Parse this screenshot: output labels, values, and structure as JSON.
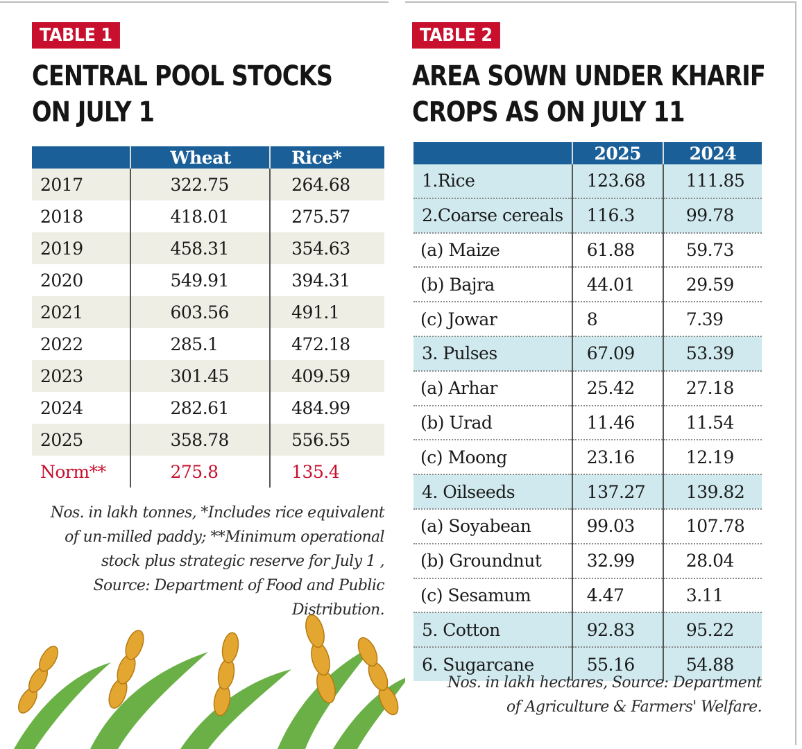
{
  "table1": {
    "tag": "TABLE 1",
    "title_line1": "CENTRAL POOL STOCKS",
    "title_line2": "ON JULY 1",
    "headers": [
      "",
      "Wheat",
      "Rice*"
    ],
    "rows": [
      [
        "2017",
        "322.75",
        "264.68"
      ],
      [
        "2018",
        "418.01",
        "275.57"
      ],
      [
        "2019",
        "458.31",
        "354.63"
      ],
      [
        "2020",
        "549.91",
        "394.31"
      ],
      [
        "2021",
        "603.56",
        "491.1"
      ],
      [
        "2022",
        "285.1",
        "472.18"
      ],
      [
        "2023",
        "301.45",
        "409.59"
      ],
      [
        "2024",
        "282.61",
        "484.99"
      ],
      [
        "2025",
        "358.78",
        "556.55"
      ],
      [
        "Norm**",
        "275.8",
        "135.4"
      ]
    ],
    "note_lines": [
      "Nos. in lakh tonnes, *Includes rice equivalent",
      "of un-milled paddy; **Minimum operational",
      "stock plus strategic reserve for July 1 ,",
      "Source: Department of Food and Public",
      "Distribution."
    ]
  },
  "table2": {
    "tag": "TABLE 2",
    "title_line1": "AREA SOWN UNDER KHARIF",
    "title_line2": "CROPS AS ON JULY 11",
    "headers": [
      "",
      "2025",
      "2024"
    ],
    "rows": [
      [
        "1.Rice",
        "123.68",
        "111.85"
      ],
      [
        "2.Coarse cereals",
        "116.3",
        "99.78"
      ],
      [
        "(a) Maize",
        "61.88",
        "59.73"
      ],
      [
        "(b) Bajra",
        "44.01",
        "29.59"
      ],
      [
        "(c) Jowar",
        "8",
        "7.39"
      ],
      [
        "3. Pulses",
        "67.09",
        "53.39"
      ],
      [
        "(a) Arhar",
        "25.42",
        "27.18"
      ],
      [
        "(b) Urad",
        "11.46",
        "11.54"
      ],
      [
        "(c) Moong",
        "23.16",
        "12.19"
      ],
      [
        "4. Oilseeds",
        "137.27",
        "139.82"
      ],
      [
        "(a) Soyabean",
        "99.03",
        "107.78"
      ],
      [
        "(b) Groundnut",
        "32.99",
        "28.04"
      ],
      [
        "(c) Sesamum",
        "4.47",
        "3.11"
      ],
      [
        "5. Cotton",
        "92.83",
        "95.22"
      ],
      [
        "6. Sugarcane",
        "55.16",
        "54.88"
      ]
    ],
    "note_lines": [
      "Nos. in lakh hectares, Source: Department",
      "of Agriculture & Farmers' Welfare."
    ]
  },
  "colors": {
    "tag_red": "#c8102e",
    "header_blue": "#1a5f97",
    "row_shade": "#efeee4",
    "row_highlight": "#cfe9ee",
    "norm_red": "#c8102e"
  },
  "decoration": "wheat-illustration"
}
